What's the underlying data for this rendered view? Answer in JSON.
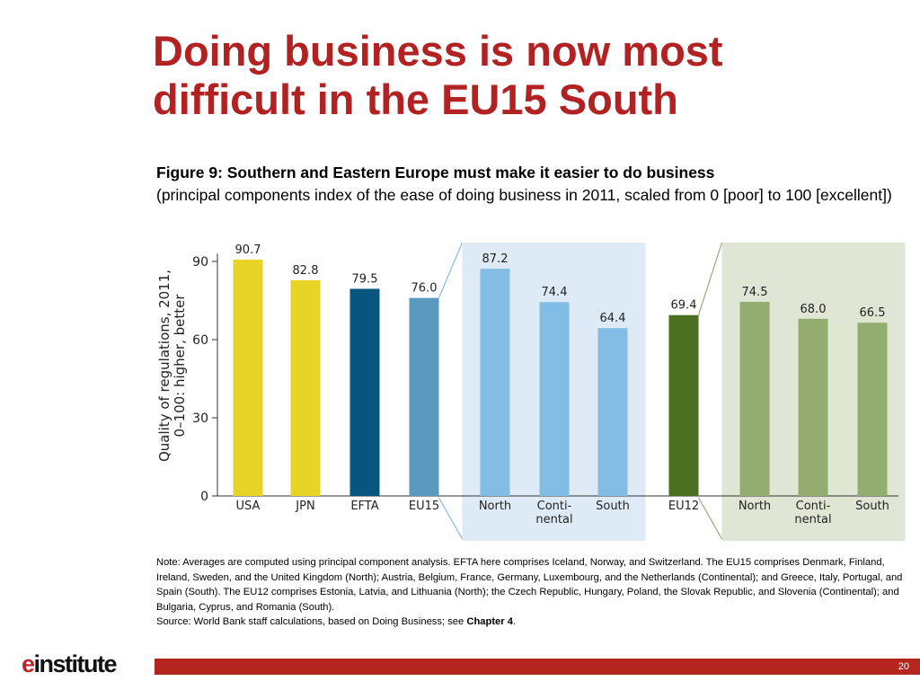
{
  "slide": {
    "title": "Doing business is now most\ndifficult in the EU15 South",
    "page_number": "20",
    "logo": {
      "prefix": "e",
      "suffix": "institute"
    }
  },
  "figure": {
    "title": "Figure 9: Southern and Eastern Europe must make it easier to do business",
    "subtitle": "(principal components index of the ease of doing business in 2011, scaled from 0 [poor] to 100 [excellent])"
  },
  "note": {
    "text": "Note: Averages are computed using principal component analysis. EFTA here comprises Iceland, Norway, and Switzerland. The EU15 comprises Denmark, Finland, Ireland, Sweden, and the United Kingdom (North); Austria, Belgium, France, Germany, Luxembourg, and the Netherlands (Continental); and Greece, Italy, Portugal, and Spain (South). The EU12 comprises Estonia, Latvia, and Lithuania (North); the Czech Republic, Hungary, Poland, the Slovak Republic, and Slovenia (Continental); and Bulgaria, Cyprus, and Romania (South).",
    "source_prefix": "Source: World Bank staff calculations, based on Doing Business; see ",
    "source_bold": "Chapter 4",
    "source_suffix": "."
  },
  "chart_data": {
    "type": "bar",
    "ylabel": [
      "Quality of regulations, 2011,",
      "0–100: higher, better"
    ],
    "ylim": [
      0,
      100
    ],
    "yticks": [
      0,
      30,
      60,
      90
    ],
    "grid": false,
    "categories": [
      [
        "USA"
      ],
      [
        "JPN"
      ],
      [
        "EFTA"
      ],
      [
        "EU15"
      ],
      [
        "North"
      ],
      [
        "Conti-",
        "nental"
      ],
      [
        "South"
      ],
      [
        "EU12"
      ],
      [
        "North"
      ],
      [
        "Conti-",
        "nental"
      ],
      [
        "South"
      ]
    ],
    "values": [
      90.7,
      82.8,
      79.5,
      76.0,
      87.2,
      74.4,
      64.4,
      69.4,
      74.5,
      68.0,
      66.5
    ],
    "value_labels": [
      "90.7",
      "82.8",
      "79.5",
      "76.0",
      "87.2",
      "74.4",
      "64.4",
      "69.4",
      "74.5",
      "68.0",
      "66.5"
    ],
    "colors": [
      "#e8d327",
      "#e8d327",
      "#07567f",
      "#5b99bf",
      "#82bde6",
      "#82bde6",
      "#82bde6",
      "#4a7020",
      "#93ad71",
      "#93ad71",
      "#93ad71"
    ],
    "panels": [
      {
        "parent_index": 3,
        "indices": [
          4,
          5,
          6
        ],
        "fill": "#deebf7",
        "stroke": "#82bde6"
      },
      {
        "parent_index": 7,
        "indices": [
          8,
          9,
          10
        ],
        "fill": "#dfe6d3",
        "stroke": "#93ad71"
      }
    ]
  }
}
